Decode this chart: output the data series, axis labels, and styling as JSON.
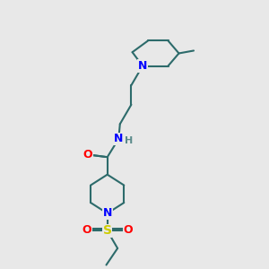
{
  "background_color": "#e8e8e8",
  "bond_color": "#2d6b6b",
  "bond_width": 1.5,
  "atom_colors": {
    "N": "#0000ff",
    "O": "#ff0000",
    "S": "#cccc00",
    "H": "#5a8a8a",
    "C": "#2d6b6b"
  },
  "font_size": 8,
  "fig_size": [
    3.0,
    3.0
  ],
  "dpi": 100
}
